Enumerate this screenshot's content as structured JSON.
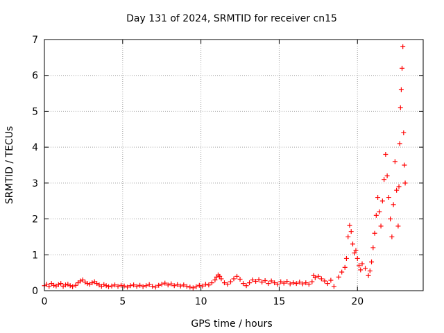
{
  "chart_data": {
    "type": "scatter",
    "title": "Day 131 of 2024, SRMTID for receiver cn15",
    "xlabel": "GPS time / hours",
    "ylabel": "SRMTID / TECUs",
    "xlim": [
      0,
      24.2
    ],
    "ylim": [
      0,
      7
    ],
    "xticks": [
      0,
      5,
      10,
      15,
      20
    ],
    "yticks": [
      0,
      1,
      2,
      3,
      4,
      5,
      6,
      7
    ],
    "grid": true,
    "marker": "+",
    "color": "#ff0000",
    "series": [
      {
        "name": "SRMTID",
        "points": [
          [
            0.0,
            0.14
          ],
          [
            0.15,
            0.18
          ],
          [
            0.3,
            0.12
          ],
          [
            0.45,
            0.2
          ],
          [
            0.6,
            0.15
          ],
          [
            0.75,
            0.13
          ],
          [
            0.9,
            0.17
          ],
          [
            1.05,
            0.2
          ],
          [
            1.2,
            0.12
          ],
          [
            1.35,
            0.16
          ],
          [
            1.5,
            0.18
          ],
          [
            1.65,
            0.14
          ],
          [
            1.8,
            0.11
          ],
          [
            2.0,
            0.15
          ],
          [
            2.15,
            0.22
          ],
          [
            2.3,
            0.27
          ],
          [
            2.45,
            0.3
          ],
          [
            2.6,
            0.24
          ],
          [
            2.75,
            0.2
          ],
          [
            2.9,
            0.18
          ],
          [
            3.05,
            0.22
          ],
          [
            3.2,
            0.25
          ],
          [
            3.35,
            0.2
          ],
          [
            3.5,
            0.16
          ],
          [
            3.65,
            0.12
          ],
          [
            3.8,
            0.17
          ],
          [
            3.95,
            0.14
          ],
          [
            4.1,
            0.11
          ],
          [
            4.3,
            0.13
          ],
          [
            4.5,
            0.16
          ],
          [
            4.7,
            0.12
          ],
          [
            4.9,
            0.15
          ],
          [
            5.1,
            0.13
          ],
          [
            5.3,
            0.1
          ],
          [
            5.5,
            0.14
          ],
          [
            5.7,
            0.16
          ],
          [
            5.9,
            0.12
          ],
          [
            6.1,
            0.15
          ],
          [
            6.3,
            0.11
          ],
          [
            6.5,
            0.14
          ],
          [
            6.7,
            0.17
          ],
          [
            6.9,
            0.12
          ],
          [
            7.1,
            0.1
          ],
          [
            7.3,
            0.15
          ],
          [
            7.5,
            0.18
          ],
          [
            7.7,
            0.21
          ],
          [
            7.9,
            0.16
          ],
          [
            8.1,
            0.19
          ],
          [
            8.3,
            0.14
          ],
          [
            8.5,
            0.17
          ],
          [
            8.7,
            0.13
          ],
          [
            8.9,
            0.16
          ],
          [
            9.1,
            0.12
          ],
          [
            9.3,
            0.1
          ],
          [
            9.5,
            0.08
          ],
          [
            9.7,
            0.11
          ],
          [
            9.9,
            0.15
          ],
          [
            10.1,
            0.13
          ],
          [
            10.3,
            0.18
          ],
          [
            10.5,
            0.16
          ],
          [
            10.7,
            0.22
          ],
          [
            10.9,
            0.3
          ],
          [
            11.0,
            0.38
          ],
          [
            11.1,
            0.44
          ],
          [
            11.2,
            0.4
          ],
          [
            11.3,
            0.33
          ],
          [
            11.5,
            0.22
          ],
          [
            11.7,
            0.18
          ],
          [
            11.9,
            0.25
          ],
          [
            12.1,
            0.33
          ],
          [
            12.3,
            0.4
          ],
          [
            12.5,
            0.32
          ],
          [
            12.7,
            0.2
          ],
          [
            12.9,
            0.14
          ],
          [
            13.1,
            0.22
          ],
          [
            13.3,
            0.3
          ],
          [
            13.5,
            0.26
          ],
          [
            13.7,
            0.31
          ],
          [
            13.9,
            0.24
          ],
          [
            14.1,
            0.28
          ],
          [
            14.3,
            0.2
          ],
          [
            14.5,
            0.27
          ],
          [
            14.7,
            0.22
          ],
          [
            14.9,
            0.18
          ],
          [
            15.1,
            0.25
          ],
          [
            15.3,
            0.21
          ],
          [
            15.5,
            0.26
          ],
          [
            15.7,
            0.19
          ],
          [
            15.9,
            0.22
          ],
          [
            16.1,
            0.2
          ],
          [
            16.3,
            0.24
          ],
          [
            16.5,
            0.19
          ],
          [
            16.7,
            0.22
          ],
          [
            16.9,
            0.18
          ],
          [
            17.1,
            0.25
          ],
          [
            17.2,
            0.42
          ],
          [
            17.3,
            0.36
          ],
          [
            17.5,
            0.4
          ],
          [
            17.7,
            0.33
          ],
          [
            17.9,
            0.27
          ],
          [
            18.1,
            0.2
          ],
          [
            18.3,
            0.29
          ],
          [
            18.5,
            0.12
          ],
          [
            18.8,
            0.38
          ],
          [
            19.0,
            0.52
          ],
          [
            19.2,
            0.65
          ],
          [
            19.3,
            0.9
          ],
          [
            19.4,
            1.5
          ],
          [
            19.5,
            1.82
          ],
          [
            19.6,
            1.65
          ],
          [
            19.7,
            1.3
          ],
          [
            19.8,
            1.05
          ],
          [
            19.9,
            1.12
          ],
          [
            20.0,
            0.9
          ],
          [
            20.1,
            0.7
          ],
          [
            20.2,
            0.58
          ],
          [
            20.3,
            0.75
          ],
          [
            20.5,
            0.62
          ],
          [
            20.7,
            0.42
          ],
          [
            20.8,
            0.55
          ],
          [
            20.9,
            0.8
          ],
          [
            21.0,
            1.2
          ],
          [
            21.1,
            1.6
          ],
          [
            21.2,
            2.1
          ],
          [
            21.3,
            2.6
          ],
          [
            21.4,
            2.2
          ],
          [
            21.5,
            1.8
          ],
          [
            21.6,
            2.5
          ],
          [
            21.7,
            3.1
          ],
          [
            21.8,
            3.8
          ],
          [
            21.9,
            3.2
          ],
          [
            22.0,
            2.6
          ],
          [
            22.1,
            2.0
          ],
          [
            22.2,
            1.5
          ],
          [
            22.3,
            2.4
          ],
          [
            22.4,
            3.6
          ],
          [
            22.5,
            2.8
          ],
          [
            22.6,
            1.8
          ],
          [
            22.65,
            2.9
          ],
          [
            22.7,
            4.1
          ],
          [
            22.75,
            5.1
          ],
          [
            22.8,
            5.6
          ],
          [
            22.85,
            6.2
          ],
          [
            22.9,
            6.8
          ],
          [
            22.95,
            4.4
          ],
          [
            23.0,
            3.5
          ],
          [
            23.05,
            3.0
          ]
        ]
      }
    ]
  }
}
